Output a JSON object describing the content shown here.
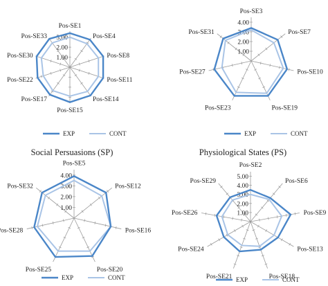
{
  "chart_data": [
    {
      "type": "radar",
      "title": "",
      "axes": [
        "Pos-SE1",
        "Pos-SE4",
        "Pos-SE8",
        "Pos-SE11",
        "Pos-SE14",
        "Pos-SE15",
        "Pos-SE17",
        "Pos-SE22",
        "Pos-SE30",
        "Pos-SE33"
      ],
      "ticks": [
        "1.00",
        "2.00",
        "3.00"
      ],
      "rlim": [
        0,
        3.6
      ],
      "series": [
        {
          "name": "EXP",
          "color": "#4a86c8",
          "values": [
            3.4,
            3.4,
            3.5,
            3.5,
            3.5,
            3.5,
            3.4,
            3.4,
            3.5,
            3.5
          ]
        },
        {
          "name": "CONT",
          "color": "#a9c4e6",
          "values": [
            3.0,
            2.9,
            3.0,
            3.0,
            3.0,
            2.9,
            2.9,
            2.8,
            3.0,
            3.0
          ]
        }
      ],
      "legend": "bottom"
    },
    {
      "type": "radar",
      "title": "",
      "axes": [
        "Pos-SE3",
        "Pos-SE7",
        "Pos-SE10",
        "Pos-SE19",
        "Pos-SE23",
        "Pos-SE27",
        "Pos-SE31"
      ],
      "ticks": [
        "1.00",
        "2.00",
        "3.00",
        "4.00"
      ],
      "rlim": [
        0,
        4.5
      ],
      "series": [
        {
          "name": "EXP",
          "color": "#4a86c8",
          "values": [
            3.4,
            3.5,
            3.8,
            4.0,
            4.0,
            3.9,
            3.7
          ]
        },
        {
          "name": "CONT",
          "color": "#a9c4e6",
          "values": [
            3.2,
            3.0,
            3.4,
            3.7,
            3.6,
            3.1,
            3.4
          ]
        }
      ],
      "legend": "bottom"
    },
    {
      "type": "radar",
      "title": "Social Persuasions (SP)",
      "axes": [
        "Pos-SE5",
        "Pos-SE12",
        "Pos-SE16",
        "Pos-SE20",
        "Pos-SE25",
        "Pos-SE28",
        "Pos-SE32"
      ],
      "ticks": [
        "1.00",
        "2.00",
        "3.00",
        "4.00"
      ],
      "rlim": [
        0,
        4.5
      ],
      "series": [
        {
          "name": "EXP",
          "color": "#4a86c8",
          "values": [
            3.9,
            3.8,
            3.5,
            3.9,
            4.0,
            3.8,
            3.8
          ]
        },
        {
          "name": "CONT",
          "color": "#a9c4e6",
          "values": [
            3.5,
            3.3,
            3.5,
            3.4,
            3.4,
            3.5,
            3.4
          ]
        }
      ],
      "legend": "bottom"
    },
    {
      "type": "radar",
      "title": "Physiological States (PS)",
      "axes": [
        "Pos-SE2",
        "Pos-SE6",
        "Pos-SE9",
        "Pos-SE13",
        "Pos-SE18",
        "Pos-SE21",
        "Pos-SE24",
        "Pos-SE26",
        "Pos-SE29"
      ],
      "ticks": [
        "1.00",
        "2.00",
        "3.00",
        "4.00",
        "5.00"
      ],
      "rlim": [
        0,
        5.5
      ],
      "series": [
        {
          "name": "EXP",
          "color": "#4a86c8",
          "values": [
            3.5,
            3.4,
            4.5,
            3.5,
            3.3,
            3.5,
            3.4,
            3.8,
            3.5
          ]
        },
        {
          "name": "CONT",
          "color": "#a9c4e6",
          "values": [
            3.0,
            3.2,
            3.5,
            3.0,
            2.9,
            2.8,
            2.9,
            3.2,
            3.1
          ]
        }
      ],
      "legend": "bottom"
    }
  ]
}
